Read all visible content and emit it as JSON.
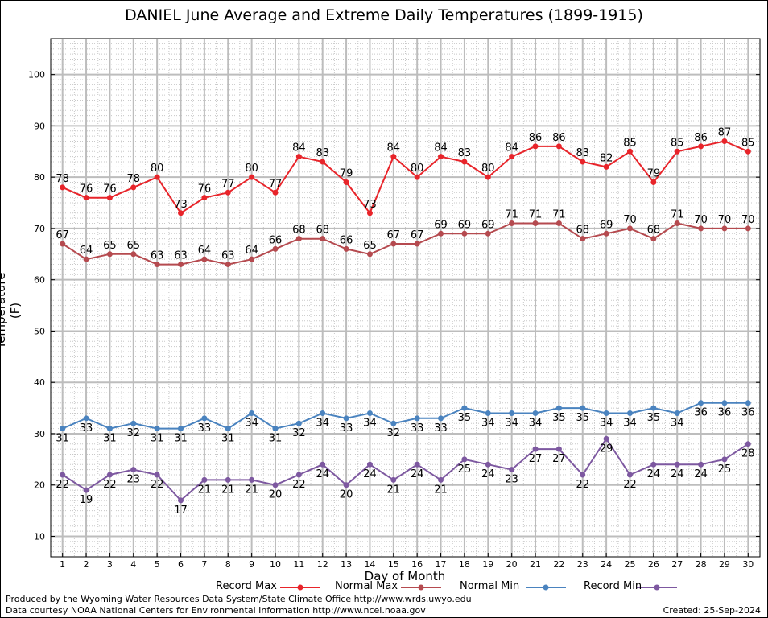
{
  "title": "DANIEL June Average and Extreme Daily Temperatures (1899-1915)",
  "footer": {
    "credit_line1": "Produced by the Wyoming Water Resources Data System/State Climate Office http://www.wrds.uwyo.edu",
    "credit_line2": "Data courtesy NOAA National Centers for Environmental Information http://www.ncei.noaa.gov",
    "created": "Created:  25-Sep-2024"
  },
  "chart_data": {
    "type": "line",
    "title": "DANIEL June Average and Extreme Daily Temperatures (1899-1915)",
    "xlabel": "Day of Month",
    "ylabel": "Temperature (F)",
    "x": [
      1,
      2,
      3,
      4,
      5,
      6,
      7,
      8,
      9,
      10,
      11,
      12,
      13,
      14,
      15,
      16,
      17,
      18,
      19,
      20,
      21,
      22,
      23,
      24,
      25,
      26,
      27,
      28,
      29,
      30
    ],
    "xlim": [
      0.5,
      30.5
    ],
    "ylim": [
      6,
      107
    ],
    "yticks": [
      10,
      20,
      30,
      40,
      50,
      60,
      70,
      80,
      90,
      100
    ],
    "grid": true,
    "legend_position": "bottom",
    "series": [
      {
        "name": "Record Max",
        "color": "#e8242a",
        "label_position": "above",
        "values": [
          78,
          76,
          76,
          78,
          80,
          73,
          76,
          77,
          80,
          77,
          84,
          83,
          79,
          73,
          84,
          80,
          84,
          83,
          80,
          84,
          86,
          86,
          83,
          82,
          85,
          79,
          85,
          86,
          87,
          85
        ]
      },
      {
        "name": "Normal Max",
        "color": "#b54a4f",
        "label_position": "above",
        "values": [
          67,
          64,
          65,
          65,
          63,
          63,
          64,
          63,
          64,
          66,
          68,
          68,
          66,
          65,
          67,
          67,
          69,
          69,
          69,
          71,
          71,
          71,
          68,
          69,
          70,
          68,
          71,
          70,
          70,
          70
        ]
      },
      {
        "name": "Normal Min",
        "color": "#4a83bf",
        "label_position": "below",
        "values": [
          31,
          33,
          31,
          32,
          31,
          31,
          33,
          31,
          34,
          31,
          32,
          34,
          33,
          34,
          32,
          33,
          33,
          35,
          34,
          34,
          34,
          35,
          35,
          34,
          34,
          35,
          34,
          36,
          36,
          36
        ]
      },
      {
        "name": "Record Min",
        "color": "#7d58a0",
        "label_position": "below",
        "values": [
          22,
          19,
          22,
          23,
          22,
          17,
          21,
          21,
          21,
          20,
          22,
          24,
          20,
          24,
          21,
          24,
          21,
          25,
          24,
          23,
          27,
          27,
          22,
          29,
          22,
          24,
          24,
          24,
          25,
          28
        ]
      }
    ]
  }
}
